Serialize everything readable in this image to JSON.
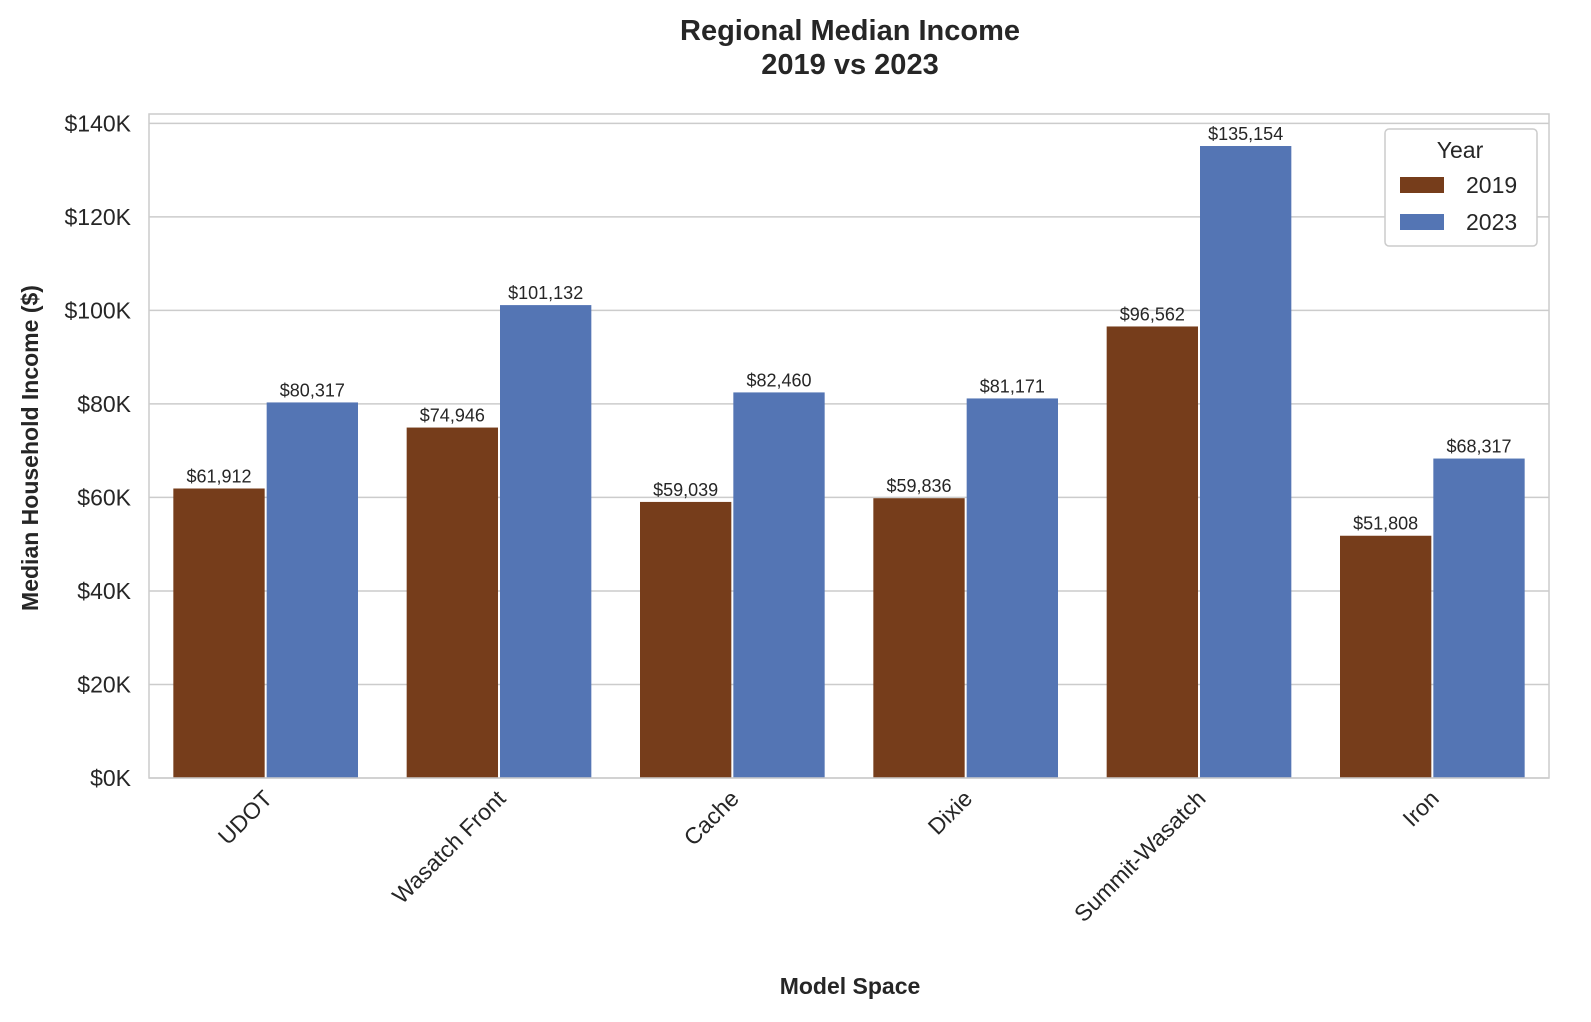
{
  "chart_data": {
    "type": "bar",
    "title": "Regional Median Income",
    "subtitle": "2019 vs 2023",
    "xlabel": "Model Space",
    "ylabel": "Median Household Income ($)",
    "categories": [
      "UDOT",
      "Wasatch Front",
      "Cache",
      "Dixie",
      "Summit-Wasatch",
      "Iron"
    ],
    "series": [
      {
        "name": "2019",
        "color": "#763d1b",
        "values": [
          61912,
          74946,
          59039,
          59836,
          96562,
          51808
        ],
        "labels": [
          "$61,912",
          "$74,946",
          "$59,039",
          "$59,836",
          "$96,562",
          "$51,808"
        ]
      },
      {
        "name": "2023",
        "color": "#5475b4",
        "values": [
          80317,
          101132,
          82460,
          81171,
          135154,
          68317
        ],
        "labels": [
          "$80,317",
          "$101,132",
          "$82,460",
          "$81,171",
          "$135,154",
          "$68,317"
        ]
      }
    ],
    "ylim": [
      0,
      142000
    ],
    "yticks": [
      0,
      20000,
      40000,
      60000,
      80000,
      100000,
      120000,
      140000
    ],
    "ytick_labels": [
      "$0K",
      "$20K",
      "$40K",
      "$60K",
      "$80K",
      "$100K",
      "$120K",
      "$140K"
    ],
    "grid": "y",
    "legend": {
      "title": "Year",
      "position": "top-right"
    }
  }
}
